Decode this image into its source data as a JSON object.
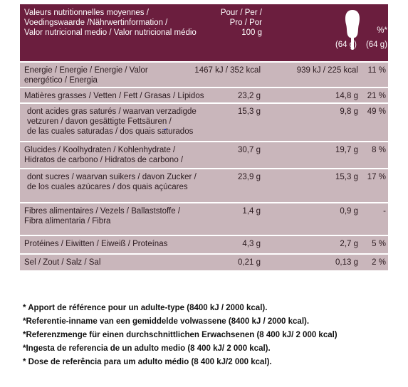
{
  "header": {
    "label": [
      "Valeurs nutritionnelles moyennes /",
      "Voedingswaarde /Nährwertinformation /",
      "Valor nutricional medio / Valor nutricional médio"
    ],
    "per": [
      "Pour / Per /",
      "Pro / Por",
      "100 g"
    ],
    "portion": "(64 g)",
    "pct": "%*",
    "pct_portion": "(64 g)",
    "icon": "ice-cream-bar-icon"
  },
  "rows": [
    {
      "label": [
        "Energie / Energie / Energie / Valor",
        "energético / Energia"
      ],
      "per100": "1467 kJ / 352 kcal",
      "portion": "939 kJ / 225 kcal",
      "pct": "11 %",
      "h": 34
    },
    {
      "label": [
        "Matières grasses / Vetten / Fett / Grasas / Lípidos"
      ],
      "per100": "23,2 g",
      "portion": "14,8 g",
      "pct": "21 %",
      "h": 20
    },
    {
      "label": [
        "dont acides gras saturés / waarvan verzadigde",
        "vetzuren / davon gesättigte Fettsäuren /",
        "de las cuales saturadas / dos quais saturados"
      ],
      "per100": "15,3 g",
      "portion": "9,8 g",
      "pct": "49 %",
      "h": 52,
      "sub": true
    },
    {
      "label": [
        "Glucides / Koolhydraten / Kohlenhydrate /",
        "Hidratos de carbono / Hidratos de carbono /"
      ],
      "per100": "30,7 g",
      "portion": "19,7 g",
      "pct": "8 %",
      "h": 36
    },
    {
      "label": [
        "dont sucres / waarvan suikers / davon Zucker /",
        "de los cuales azúcares / dos quais açúcares"
      ],
      "per100": "23,9 g",
      "portion": "15,3 g",
      "pct": "17 %",
      "h": 46,
      "sub": true
    },
    {
      "label": [
        "Fibres alimentaires / Vezels / Ballaststoffe /",
        "Fibra alimentaria / Fibra"
      ],
      "per100": "1,4 g",
      "portion": "0,9 g",
      "pct": "-",
      "h": 44
    },
    {
      "label": [
        "Protéines / Eiwitten / Eiweiß / Proteínas"
      ],
      "per100": "4,3 g",
      "portion": "2,7 g",
      "pct": "5 %",
      "h": 24
    },
    {
      "label": [
        "Sel / Zout / Salz / Sal"
      ],
      "per100": "0,21 g",
      "portion": "0,13 g",
      "pct": "2 %",
      "h": 22
    }
  ],
  "footnotes": [
    "* Apport de référence pour un adulte-type (8400 kJ / 2000 kcal).",
    "*Referentie-inname van een gemiddelde volwassene (8400 kJ / 2000 kcal).",
    "*Referenzmenge für einen durchschnittlichen Erwachsenen (8 400 kJ/ 2 000 kcal)",
    "*Ingesta de referencia de un adulto medio (8 400 kJ/ 2 000 kcal).",
    "* Dose de referência para um adulto médio (8 400 kJ/2 000 kcal)."
  ],
  "colors": {
    "header": "#6b1e3e",
    "row": "#c9b6bb"
  }
}
